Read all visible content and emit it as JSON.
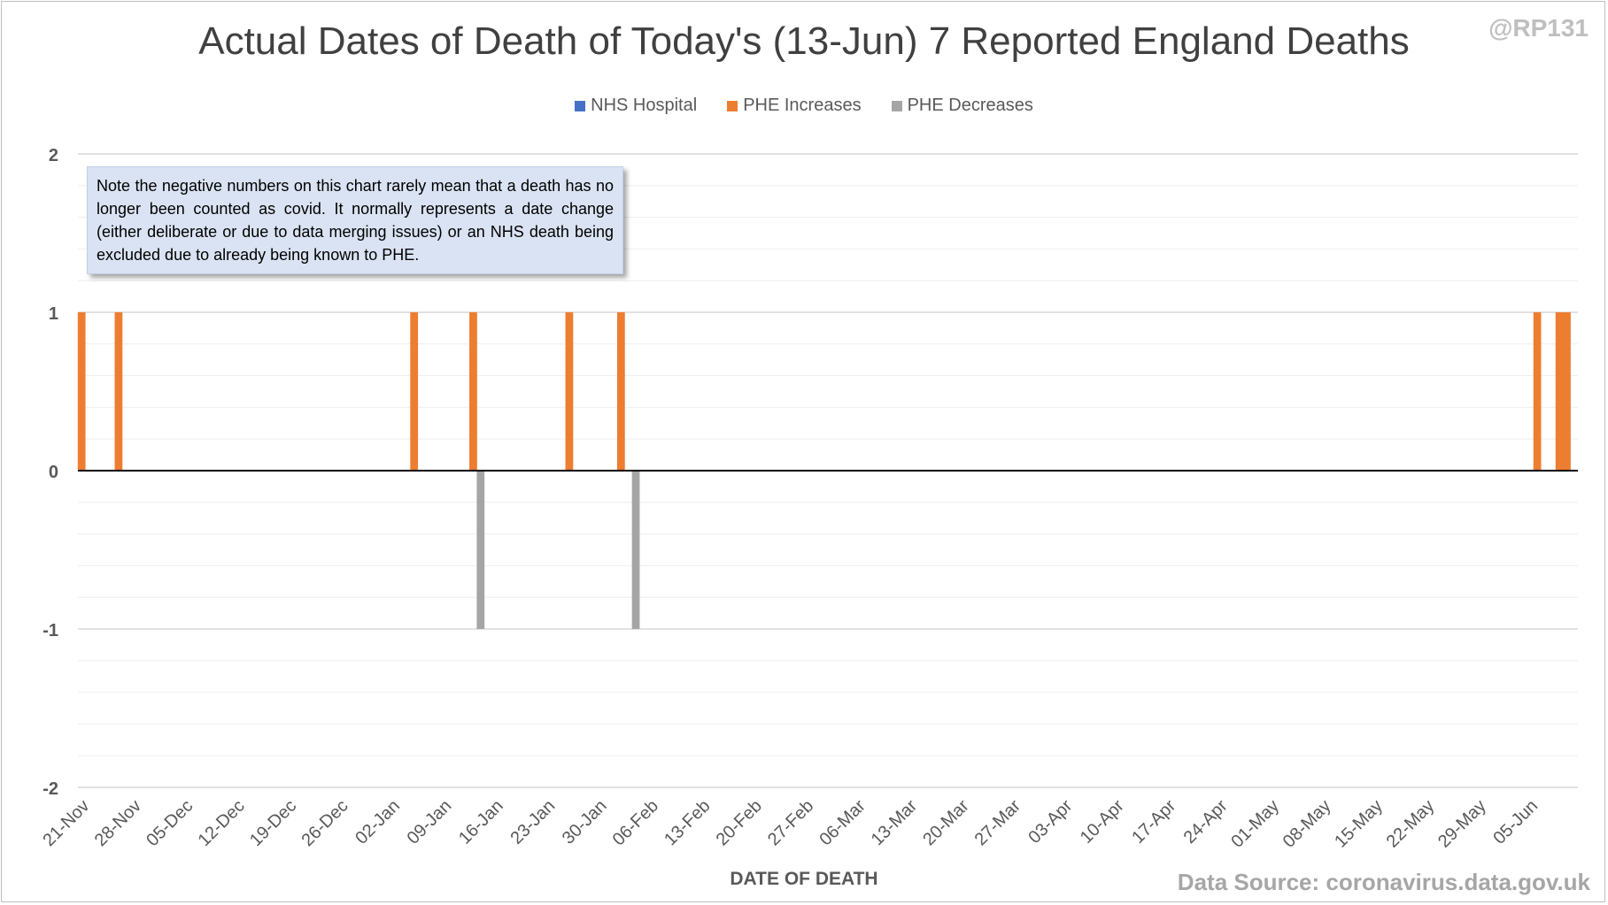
{
  "title": "Actual Dates of Death of Today's (13-Jun) 7 Reported England Deaths",
  "handle": "@RP131",
  "note": "Note the negative numbers on this chart rarely mean that a death has no longer been counted as covid. It normally represents a date change (either deliberate or due to data merging issues) or an NHS death being excluded due to already being known to PHE.",
  "source": "Data Source: coronavirus.data.gov.uk",
  "chart_data": {
    "type": "bar",
    "title": "Actual Dates of Death of Today's (13-Jun) 7 Reported England Deaths",
    "xlabel": "DATE OF DEATH",
    "ylabel": "",
    "ylim": [
      -2,
      2
    ],
    "yticks": [
      2,
      1,
      0,
      -1,
      -2
    ],
    "grid": true,
    "legend_position": "top",
    "x_start": "21-Nov",
    "x_end": "11-Jun",
    "tick_labels": [
      "21-Nov",
      "28-Nov",
      "05-Dec",
      "12-Dec",
      "19-Dec",
      "26-Dec",
      "02-Jan",
      "09-Jan",
      "16-Jan",
      "23-Jan",
      "30-Jan",
      "06-Feb",
      "13-Feb",
      "20-Feb",
      "27-Feb",
      "06-Mar",
      "13-Mar",
      "20-Mar",
      "27-Mar",
      "03-Apr",
      "10-Apr",
      "17-Apr",
      "24-Apr",
      "01-May",
      "08-May",
      "15-May",
      "22-May",
      "29-May",
      "05-Jun"
    ],
    "series": [
      {
        "name": "NHS Hospital",
        "color": "#4472c4",
        "points": []
      },
      {
        "name": "PHE Increases",
        "color": "#ed7d31",
        "points": [
          {
            "x": "21-Nov",
            "y": 1
          },
          {
            "x": "26-Nov",
            "y": 1
          },
          {
            "x": "05-Jan",
            "y": 1
          },
          {
            "x": "13-Jan",
            "y": 1
          },
          {
            "x": "26-Jan",
            "y": 1
          },
          {
            "x": "02-Feb",
            "y": 1
          },
          {
            "x": "06-Jun",
            "y": 1
          },
          {
            "x": "09-Jun",
            "y": 1
          },
          {
            "x": "10-Jun",
            "y": 1
          }
        ]
      },
      {
        "name": "PHE Decreases",
        "color": "#a5a5a5",
        "points": [
          {
            "x": "14-Jan",
            "y": -1
          },
          {
            "x": "04-Feb",
            "y": -1
          }
        ]
      }
    ]
  }
}
